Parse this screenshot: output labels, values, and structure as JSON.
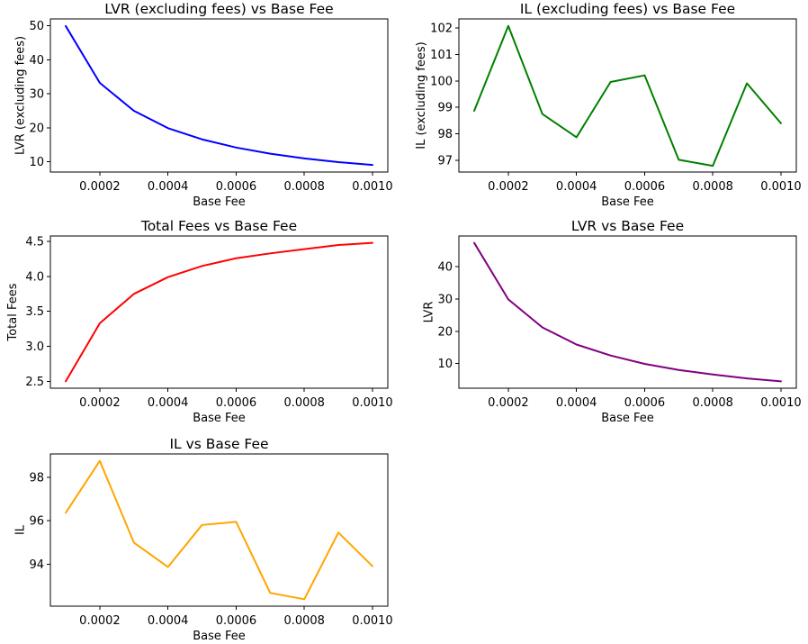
{
  "chart_data": [
    {
      "type": "line",
      "title": "LVR (excluding fees) vs Base Fee",
      "xlabel": "Base Fee",
      "ylabel": "LVR (excluding fees)",
      "color": "#0000ff",
      "x": [
        0.0001,
        0.0002,
        0.0003,
        0.0004,
        0.0005,
        0.0006,
        0.0007,
        0.0008,
        0.0009,
        0.001
      ],
      "values": [
        49.9,
        33.2,
        25.0,
        19.9,
        16.6,
        14.2,
        12.4,
        11.0,
        9.9,
        9.1
      ],
      "xticks": [
        0.0002,
        0.0004,
        0.0006,
        0.0008,
        0.001
      ],
      "xtick_labels": [
        "0.0002",
        "0.0004",
        "0.0006",
        "0.0008",
        "0.0010"
      ],
      "yticks": [
        10,
        20,
        30,
        40,
        50
      ],
      "ytick_labels": [
        "10",
        "20",
        "30",
        "40",
        "50"
      ],
      "xlim": [
        5.5e-05,
        0.001045
      ],
      "ylim": [
        7.0,
        52.0
      ]
    },
    {
      "type": "line",
      "title": "IL (excluding fees) vs Base Fee",
      "xlabel": "Base Fee",
      "ylabel": "IL (excluding fees)",
      "color": "#008000",
      "x": [
        0.0001,
        0.0002,
        0.0003,
        0.0004,
        0.0005,
        0.0006,
        0.0007,
        0.0008,
        0.0009,
        0.001
      ],
      "values": [
        98.87,
        102.08,
        98.75,
        97.87,
        99.96,
        100.21,
        97.02,
        96.79,
        99.91,
        98.4
      ],
      "xticks": [
        0.0002,
        0.0004,
        0.0006,
        0.0008,
        0.001
      ],
      "xtick_labels": [
        "0.0002",
        "0.0004",
        "0.0006",
        "0.0008",
        "0.0010"
      ],
      "yticks": [
        97,
        98,
        99,
        100,
        101,
        102
      ],
      "ytick_labels": [
        "97",
        "98",
        "99",
        "100",
        "101",
        "102"
      ],
      "xlim": [
        5.5e-05,
        0.001045
      ],
      "ylim": [
        96.5566,
        102.3434
      ]
    },
    {
      "type": "line",
      "title": "Total Fees vs Base Fee",
      "xlabel": "Base Fee",
      "ylabel": "Total Fees",
      "color": "#ff0000",
      "x": [
        0.0001,
        0.0002,
        0.0003,
        0.0004,
        0.0005,
        0.0006,
        0.0007,
        0.0008,
        0.0009,
        0.001
      ],
      "values": [
        2.5,
        3.33,
        3.75,
        3.99,
        4.15,
        4.26,
        4.33,
        4.39,
        4.45,
        4.48
      ],
      "xticks": [
        0.0002,
        0.0004,
        0.0006,
        0.0008,
        0.001
      ],
      "xtick_labels": [
        "0.0002",
        "0.0004",
        "0.0006",
        "0.0008",
        "0.0010"
      ],
      "yticks": [
        2.5,
        3.0,
        3.5,
        4.0,
        4.5
      ],
      "ytick_labels": [
        "2.5",
        "3.0",
        "3.5",
        "4.0",
        "4.5"
      ],
      "xlim": [
        5.5e-05,
        0.001045
      ],
      "ylim": [
        2.401,
        4.579
      ]
    },
    {
      "type": "line",
      "title": "LVR vs Base Fee",
      "xlabel": "Base Fee",
      "ylabel": "LVR",
      "color": "#800080",
      "x": [
        0.0001,
        0.0002,
        0.0003,
        0.0004,
        0.0005,
        0.0006,
        0.0007,
        0.0008,
        0.0009,
        0.001
      ],
      "values": [
        47.4,
        29.9,
        21.2,
        15.9,
        12.5,
        9.9,
        8.0,
        6.6,
        5.4,
        4.5
      ],
      "xticks": [
        0.0002,
        0.0004,
        0.0006,
        0.0008,
        0.001
      ],
      "xtick_labels": [
        "0.0002",
        "0.0004",
        "0.0006",
        "0.0008",
        "0.0010"
      ],
      "yticks": [
        10,
        20,
        30,
        40
      ],
      "ytick_labels": [
        "10",
        "20",
        "30",
        "40"
      ],
      "xlim": [
        5.5e-05,
        0.001045
      ],
      "ylim": [
        2.355,
        49.545
      ]
    },
    {
      "type": "line",
      "title": "IL vs Base Fee",
      "xlabel": "Base Fee",
      "ylabel": "IL",
      "color": "#ffa500",
      "x": [
        0.0001,
        0.0002,
        0.0003,
        0.0004,
        0.0005,
        0.0006,
        0.0007,
        0.0008,
        0.0009,
        0.001
      ],
      "values": [
        96.37,
        98.75,
        95.0,
        93.88,
        95.81,
        95.95,
        92.69,
        92.4,
        95.46,
        93.92
      ],
      "xticks": [
        0.0002,
        0.0004,
        0.0006,
        0.0008,
        0.001
      ],
      "xtick_labels": [
        "0.0002",
        "0.0004",
        "0.0006",
        "0.0008",
        "0.0010"
      ],
      "yticks": [
        94,
        96,
        98
      ],
      "ytick_labels": [
        "94",
        "96",
        "98"
      ],
      "xlim": [
        5.5e-05,
        0.001045
      ],
      "ylim": [
        92.0825,
        99.0675
      ]
    }
  ]
}
